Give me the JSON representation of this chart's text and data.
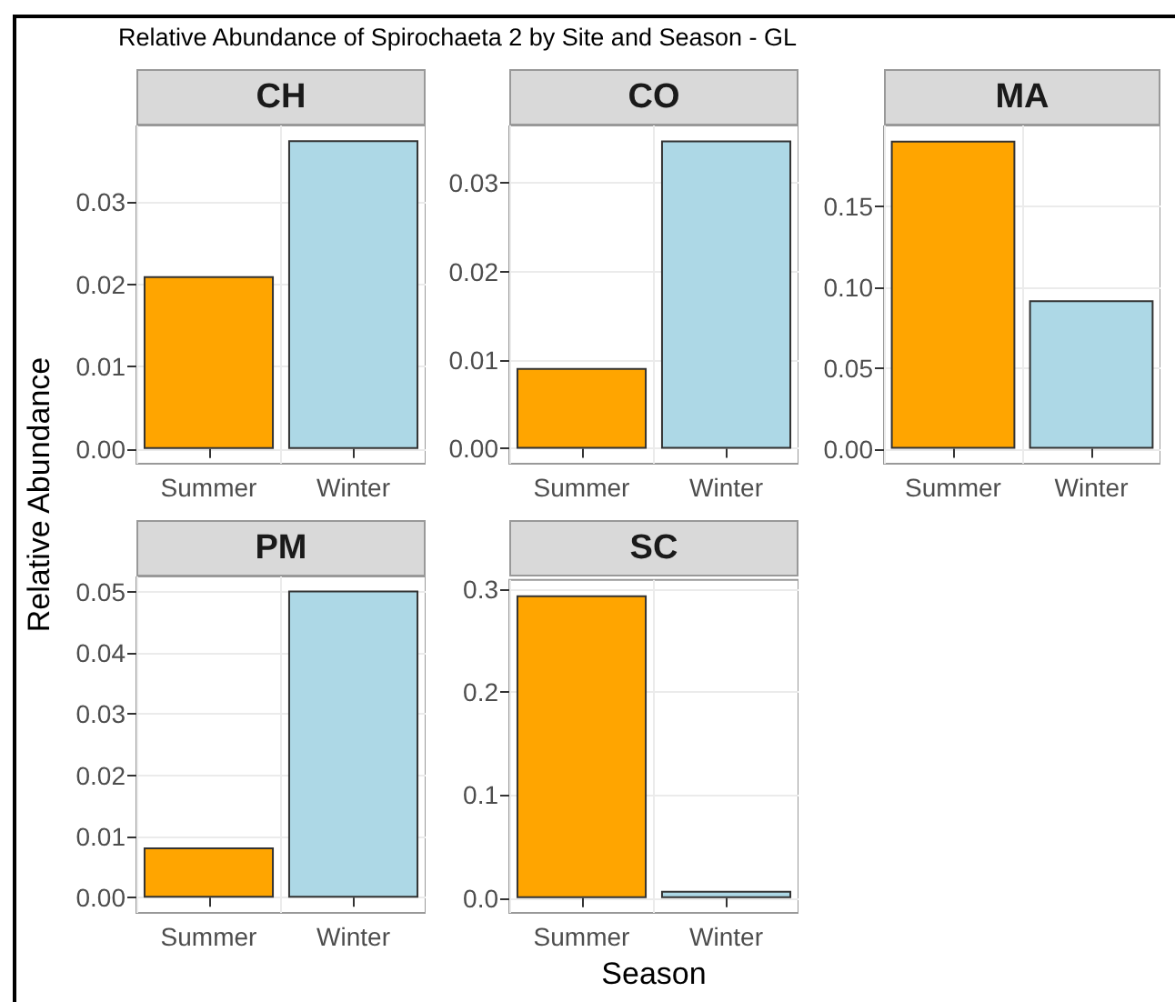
{
  "chart_data": [
    {
      "type": "bar",
      "title": "CH",
      "annotations": [
        "Relative Abundance of Spirochaeta 2 by Site and Season - GL"
      ],
      "ylabel": "Relative Abundance",
      "categories": [
        "Summer",
        "Winter"
      ],
      "values": [
        0.021,
        0.0375
      ],
      "colors": [
        "#ffa500",
        "#add8e6"
      ],
      "ylim": [
        -0.0018,
        0.0393
      ],
      "yticks": [
        {
          "value": 0,
          "label": "0.00"
        },
        {
          "value": 0.01,
          "label": "0.01"
        },
        {
          "value": 0.02,
          "label": "0.02"
        },
        {
          "value": 0.03,
          "label": "0.03"
        }
      ],
      "grid": true
    },
    {
      "type": "bar",
      "title": "CO",
      "categories": [
        "Summer",
        "Winter"
      ],
      "values": [
        0.0091,
        0.0348
      ],
      "colors": [
        "#ffa500",
        "#add8e6"
      ],
      "ylim": [
        -0.0017,
        0.0365
      ],
      "yticks": [
        {
          "value": 0,
          "label": "0.00"
        },
        {
          "value": 0.01,
          "label": "0.01"
        },
        {
          "value": 0.02,
          "label": "0.02"
        },
        {
          "value": 0.03,
          "label": "0.03"
        }
      ],
      "grid": true
    },
    {
      "type": "bar",
      "title": "MA",
      "categories": [
        "Summer",
        "Winter"
      ],
      "values": [
        0.191,
        0.092
      ],
      "colors": [
        "#ffa500",
        "#add8e6"
      ],
      "ylim": [
        -0.0093,
        0.2004
      ],
      "yticks": [
        {
          "value": 0,
          "label": "0.00"
        },
        {
          "value": 0.05,
          "label": "0.05"
        },
        {
          "value": 0.1,
          "label": "0.10"
        },
        {
          "value": 0.15,
          "label": "0.15"
        }
      ],
      "grid": true
    },
    {
      "type": "bar",
      "title": "PM",
      "categories": [
        "Summer",
        "Winter"
      ],
      "values": [
        0.0082,
        0.0502
      ],
      "colors": [
        "#ffa500",
        "#add8e6"
      ],
      "ylim": [
        -0.0025,
        0.0525
      ],
      "yticks": [
        {
          "value": 0,
          "label": "0.00"
        },
        {
          "value": 0.01,
          "label": "0.01"
        },
        {
          "value": 0.02,
          "label": "0.02"
        },
        {
          "value": 0.03,
          "label": "0.03"
        },
        {
          "value": 0.04,
          "label": "0.04"
        },
        {
          "value": 0.05,
          "label": "0.05"
        }
      ],
      "grid": true
    },
    {
      "type": "bar",
      "title": "SC",
      "xlabel": "Season",
      "categories": [
        "Summer",
        "Winter"
      ],
      "values": [
        0.294,
        0.007
      ],
      "colors": [
        "#ffa500",
        "#add8e6"
      ],
      "ylim": [
        -0.0144,
        0.309
      ],
      "yticks": [
        {
          "value": 0,
          "label": "0.0"
        },
        {
          "value": 0.1,
          "label": "0.1"
        },
        {
          "value": 0.2,
          "label": "0.2"
        },
        {
          "value": 0.3,
          "label": "0.3"
        }
      ],
      "grid": true
    }
  ]
}
